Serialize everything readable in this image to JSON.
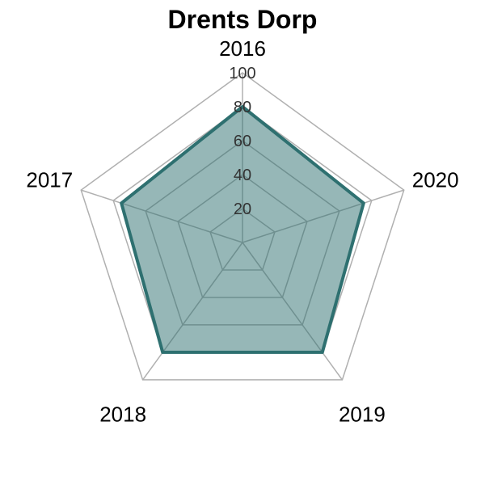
{
  "chart_data": {
    "type": "radar",
    "title": "Drents Dorp",
    "categories": [
      "2016",
      "2017",
      "2018",
      "2019",
      "2020"
    ],
    "series": [
      {
        "values": [
          80,
          75,
          80,
          80,
          75
        ]
      }
    ],
    "rlim": [
      0,
      100
    ],
    "ticks": [
      "20",
      "40",
      "60",
      "80",
      "100"
    ],
    "grid": true,
    "legend": "none",
    "colors": {
      "series_line": "#2e7070",
      "series_fill": "#2e7070",
      "grid": "#b0b0b0"
    }
  }
}
